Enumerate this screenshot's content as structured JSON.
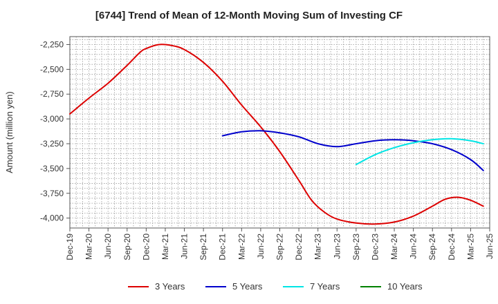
{
  "chart_data": {
    "type": "line",
    "title": "[6744]  Trend of Mean of 12-Month Moving Sum of Investing CF",
    "xlabel": "",
    "ylabel": "Amount (million yen)",
    "ylim": [
      -4100,
      -2170
    ],
    "yticks": [
      -2250,
      -2500,
      -2750,
      -3000,
      -3250,
      -3500,
      -3750,
      -4000
    ],
    "ytick_labels": [
      "-2,250",
      "-2,500",
      "-2,750",
      "-3,000",
      "-3,250",
      "-3,500",
      "-3,750",
      "-4,000"
    ],
    "x_index_range": [
      0,
      66
    ],
    "xticks": [
      0,
      3,
      6,
      9,
      12,
      15,
      18,
      21,
      24,
      27,
      30,
      33,
      36,
      39,
      42,
      45,
      48,
      51,
      54,
      57,
      60,
      63,
      66
    ],
    "xtick_labels": [
      "Dec-19",
      "Mar-20",
      "Jun-20",
      "Sep-20",
      "Dec-20",
      "Mar-21",
      "Jun-21",
      "Sep-21",
      "Dec-21",
      "Mar-22",
      "Jun-22",
      "Sep-22",
      "Dec-22",
      "Mar-23",
      "Jun-23",
      "Sep-23",
      "Dec-23",
      "Mar-24",
      "Jun-24",
      "Sep-24",
      "Dec-24",
      "Mar-25",
      "Jun-25"
    ],
    "grid": true,
    "legend_position": "bottom",
    "series": [
      {
        "name": "3 Years",
        "color": "#dd0000",
        "points": [
          [
            0,
            -2950
          ],
          [
            3,
            -2790
          ],
          [
            6,
            -2640
          ],
          [
            9,
            -2460
          ],
          [
            11,
            -2330
          ],
          [
            12,
            -2290
          ],
          [
            14,
            -2250
          ],
          [
            16,
            -2260
          ],
          [
            18,
            -2300
          ],
          [
            21,
            -2430
          ],
          [
            24,
            -2620
          ],
          [
            27,
            -2860
          ],
          [
            30,
            -3080
          ],
          [
            33,
            -3330
          ],
          [
            36,
            -3620
          ],
          [
            38,
            -3820
          ],
          [
            40,
            -3940
          ],
          [
            42,
            -4010
          ],
          [
            45,
            -4050
          ],
          [
            48,
            -4060
          ],
          [
            51,
            -4040
          ],
          [
            54,
            -3980
          ],
          [
            57,
            -3880
          ],
          [
            59,
            -3810
          ],
          [
            61,
            -3790
          ],
          [
            63,
            -3820
          ],
          [
            65,
            -3880
          ]
        ]
      },
      {
        "name": "5 Years",
        "color": "#0000cc",
        "points": [
          [
            24,
            -3170
          ],
          [
            27,
            -3130
          ],
          [
            30,
            -3120
          ],
          [
            33,
            -3140
          ],
          [
            36,
            -3180
          ],
          [
            39,
            -3250
          ],
          [
            42,
            -3280
          ],
          [
            45,
            -3250
          ],
          [
            48,
            -3220
          ],
          [
            51,
            -3210
          ],
          [
            54,
            -3220
          ],
          [
            57,
            -3250
          ],
          [
            60,
            -3310
          ],
          [
            63,
            -3410
          ],
          [
            65,
            -3520
          ]
        ]
      },
      {
        "name": "7 Years",
        "color": "#00e5e5",
        "points": [
          [
            45,
            -3460
          ],
          [
            48,
            -3360
          ],
          [
            51,
            -3290
          ],
          [
            54,
            -3240
          ],
          [
            57,
            -3210
          ],
          [
            60,
            -3200
          ],
          [
            63,
            -3220
          ],
          [
            65,
            -3250
          ]
        ]
      },
      {
        "name": "10 Years",
        "color": "#008000",
        "points": []
      }
    ]
  }
}
